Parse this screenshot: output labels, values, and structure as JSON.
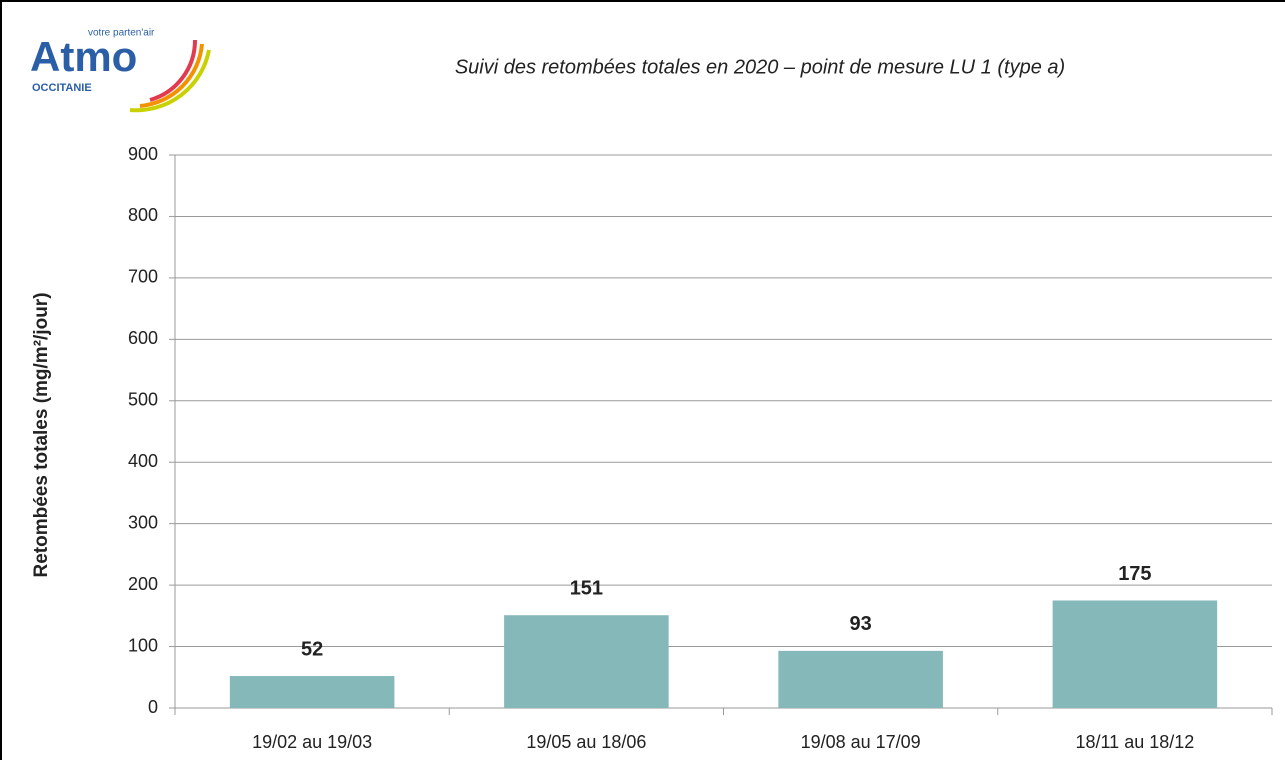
{
  "chart_data": {
    "type": "bar",
    "title": "Suivi des retombées totales en 2020 – point de mesure LU 1 (type a)",
    "logo": {
      "name": "Atmo",
      "tagline": "votre parten'air",
      "region": "OCCITANIE"
    },
    "y_label": "Retombées totales (mg/m²/jour)",
    "categories": [
      "19/02 au 19/03",
      "19/05 au 18/06",
      "19/08 au 17/09",
      "18/11 au 18/12"
    ],
    "values": [
      52,
      151,
      93,
      175
    ],
    "color": "#85b8b8",
    "ylim": [
      0,
      900
    ],
    "yticks": [
      0,
      100,
      200,
      300,
      400,
      500,
      600,
      700,
      800,
      900
    ],
    "grid": true
  }
}
